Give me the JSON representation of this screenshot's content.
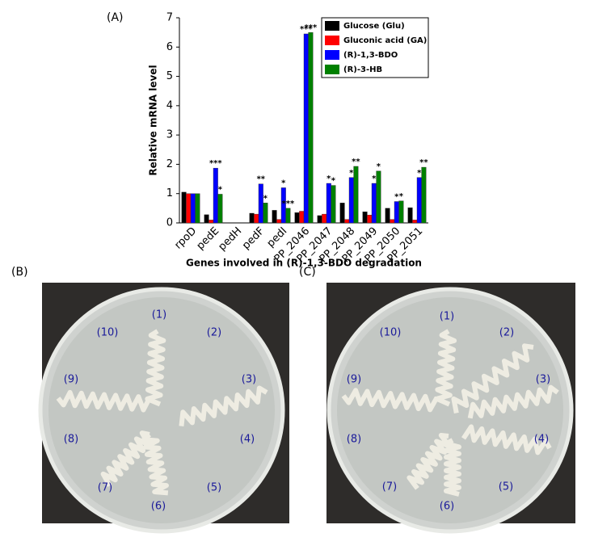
{
  "chart_data": {
    "type": "bar",
    "panel_label": "(A)",
    "y_label": "Relative mRNA level",
    "x_label": "Genes involved in (R)-1,3-BDO degradation",
    "categories": [
      "rpoD",
      "pedE",
      "pedH",
      "pedF",
      "pedI",
      "PP_2046",
      "PP_2047",
      "PP_2048",
      "PP_2049",
      "PP_2050",
      "PP_2051"
    ],
    "series": [
      {
        "name": "Glucose (Glu)",
        "color": "#000000",
        "values": [
          1.05,
          0.28,
          0,
          0.33,
          0.43,
          0.35,
          0.25,
          0.68,
          0.38,
          0.5,
          0.52
        ],
        "significance": [
          null,
          null,
          null,
          null,
          null,
          null,
          null,
          null,
          null,
          null,
          null
        ]
      },
      {
        "name": "Gluconic acid (GA)",
        "color": "#ff0000",
        "values": [
          1.0,
          0.1,
          0,
          0.3,
          0.12,
          0.4,
          0.3,
          0.12,
          0.27,
          0.12,
          0.1
        ],
        "significance": [
          null,
          null,
          null,
          null,
          null,
          null,
          null,
          null,
          null,
          null,
          null
        ]
      },
      {
        "name": "(R)-1,3-BDO",
        "color": "#0000ff",
        "values": [
          1.0,
          1.87,
          0,
          1.33,
          1.2,
          6.45,
          1.35,
          1.55,
          1.35,
          0.73,
          1.55
        ],
        "significance": [
          null,
          "***",
          null,
          "**",
          "*",
          "***",
          "*",
          "*",
          "*",
          "*",
          "*"
        ]
      },
      {
        "name": "(R)-3-HB",
        "color": "#008000",
        "values": [
          1.0,
          0.98,
          0,
          0.68,
          0.5,
          6.5,
          1.28,
          1.93,
          1.77,
          0.75,
          1.9
        ],
        "significance": [
          null,
          "*",
          null,
          "*",
          "***",
          "***",
          "*",
          "**",
          "*",
          "*",
          "**"
        ]
      }
    ],
    "ylim": [
      0,
      7
    ],
    "yticks": [
      0,
      1,
      2,
      3,
      4,
      5,
      6,
      7
    ],
    "legend": "upper right"
  },
  "panels": [
    {
      "label": "(B)",
      "plate_labels": [
        "(1)",
        "(2)",
        "(3)",
        "(4)",
        "(5)",
        "(6)",
        "(7)",
        "(8)",
        "(9)",
        "(10)"
      ]
    },
    {
      "label": "(C)",
      "plate_labels": [
        "(1)",
        "(2)",
        "(3)",
        "(4)",
        "(5)",
        "(6)",
        "(7)",
        "(8)",
        "(9)",
        "(10)"
      ]
    }
  ]
}
